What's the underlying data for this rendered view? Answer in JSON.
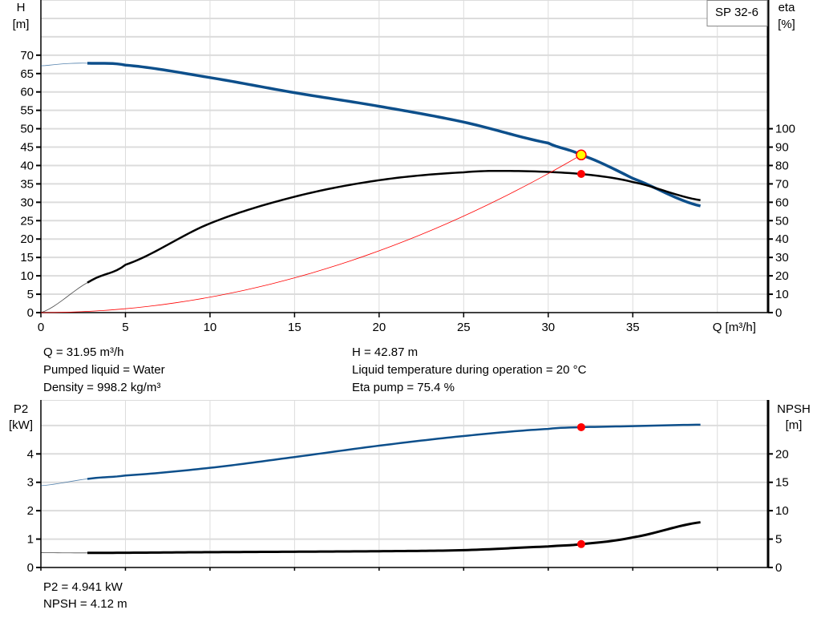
{
  "chart_data": [
    {
      "type": "line",
      "title": "SP 32-6",
      "xlabel": "Q [m³/h]",
      "xlim": [
        0,
        43
      ],
      "xticks": [
        0,
        5,
        10,
        15,
        20,
        25,
        30,
        35
      ],
      "ylabel_left": "H\n[m]",
      "ylim_left": [
        0,
        85
      ],
      "yticks_left": [
        0,
        5,
        10,
        15,
        20,
        25,
        30,
        35,
        40,
        45,
        50,
        55,
        60,
        65,
        70
      ],
      "ylabel_right": "eta\n[%]",
      "ylim_right": [
        0,
        170
      ],
      "yticks_right": [
        0,
        10,
        20,
        30,
        40,
        50,
        60,
        70,
        80,
        90,
        100
      ],
      "grid": true,
      "series": [
        {
          "id": "H",
          "axis": "left",
          "color": "#0d4f8b",
          "x": [
            0,
            1.5,
            2.9,
            5,
            10,
            15,
            20,
            25,
            30,
            31.95,
            35,
            39.1
          ],
          "y": [
            67.1,
            67.7,
            67.8,
            67.3,
            63.9,
            59.8,
            56.1,
            51.8,
            46.1,
            42.87,
            36.5,
            28.9
          ],
          "thin_until": 2.9
        },
        {
          "id": "eta",
          "axis": "right",
          "color": "#000000",
          "x": [
            0,
            2.9,
            5,
            10,
            15,
            20,
            25,
            28,
            31.95,
            35,
            39.1
          ],
          "y": [
            0,
            17,
            26,
            48.5,
            63,
            72,
            76.3,
            77,
            75.4,
            71,
            61
          ],
          "thin_until": 2.9
        },
        {
          "id": "system",
          "axis": "left",
          "color": "#ff0000",
          "curve": "parabola",
          "x": [
            0,
            31.95
          ],
          "y": [
            0,
            42.87
          ]
        }
      ],
      "operating_point": {
        "Q": 31.95,
        "H": 42.87,
        "eta": 75.4
      }
    },
    {
      "type": "line",
      "xlim": [
        0,
        43
      ],
      "ylabel_left": "P2\n[kW]",
      "ylim_left": [
        0,
        5.9
      ],
      "yticks_left": [
        0,
        1,
        2,
        3,
        4
      ],
      "ylabel_right": "NPSH\n[m]",
      "ylim_right": [
        0,
        29.5
      ],
      "yticks_right": [
        0,
        5,
        10,
        15,
        20
      ],
      "grid": true,
      "series": [
        {
          "id": "P2",
          "axis": "left",
          "color": "#0d4f8b",
          "x": [
            0,
            2.9,
            5,
            10,
            15,
            20,
            25,
            30,
            31.95,
            35,
            39.1
          ],
          "y": [
            2.88,
            3.13,
            3.24,
            3.51,
            3.89,
            4.29,
            4.63,
            4.88,
            4.941,
            4.98,
            5.03
          ],
          "thin_until": 2.9
        },
        {
          "id": "NPSH",
          "axis": "right",
          "color": "#000000",
          "x": [
            0,
            2.9,
            10,
            20,
            25,
            30,
            31.95,
            35,
            39.1
          ],
          "y": [
            2.6,
            2.57,
            2.7,
            2.86,
            3.05,
            3.7,
            4.12,
            5.3,
            8.0
          ],
          "thin_until": 2.9
        }
      ],
      "operating_point": {
        "Q": 31.95,
        "P2": 4.941,
        "NPSH": 4.12
      }
    }
  ],
  "info_top": [
    "Q = 31.95 m³/h",
    "Pumped liquid = Water",
    "Density = 998.2 kg/m³",
    "H = 42.87 m",
    "Liquid temperature during operation = 20 °C",
    "Eta pump = 75.4 %"
  ],
  "info_bottom": [
    "P2 = 4.941 kW",
    "NPSH = 4.12 m"
  ]
}
